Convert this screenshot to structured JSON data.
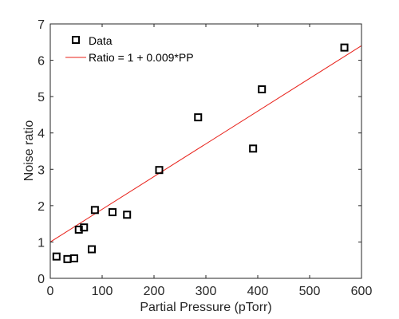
{
  "chart_data": {
    "type": "scatter",
    "title": "",
    "xlabel": "Partial Pressure (pTorr)",
    "ylabel": "Noise ratio",
    "xlim": [
      0,
      600
    ],
    "ylim": [
      0,
      7
    ],
    "xticks": [
      "0",
      "100",
      "200",
      "300",
      "400",
      "500",
      "600"
    ],
    "yticks": [
      "0",
      "1",
      "2",
      "3",
      "4",
      "5",
      "6",
      "7"
    ],
    "grid": false,
    "legend_position": "top-left",
    "series": [
      {
        "name": "Data",
        "marker": "open-square",
        "color": "#000000",
        "points": [
          {
            "x": 12,
            "y": 0.6
          },
          {
            "x": 33,
            "y": 0.53
          },
          {
            "x": 46,
            "y": 0.55
          },
          {
            "x": 55,
            "y": 1.34
          },
          {
            "x": 65,
            "y": 1.4
          },
          {
            "x": 80,
            "y": 0.8
          },
          {
            "x": 86,
            "y": 1.88
          },
          {
            "x": 120,
            "y": 1.82
          },
          {
            "x": 148,
            "y": 1.75
          },
          {
            "x": 210,
            "y": 2.98
          },
          {
            "x": 285,
            "y": 4.43
          },
          {
            "x": 391,
            "y": 3.57
          },
          {
            "x": 408,
            "y": 5.2
          },
          {
            "x": 567,
            "y": 6.35
          }
        ]
      },
      {
        "name": "Ratio = 1 + 0.009*PP",
        "type": "line",
        "color": "#e8211a",
        "points": [
          {
            "x": 0,
            "y": 1.0
          },
          {
            "x": 600,
            "y": 6.4
          }
        ]
      }
    ]
  }
}
